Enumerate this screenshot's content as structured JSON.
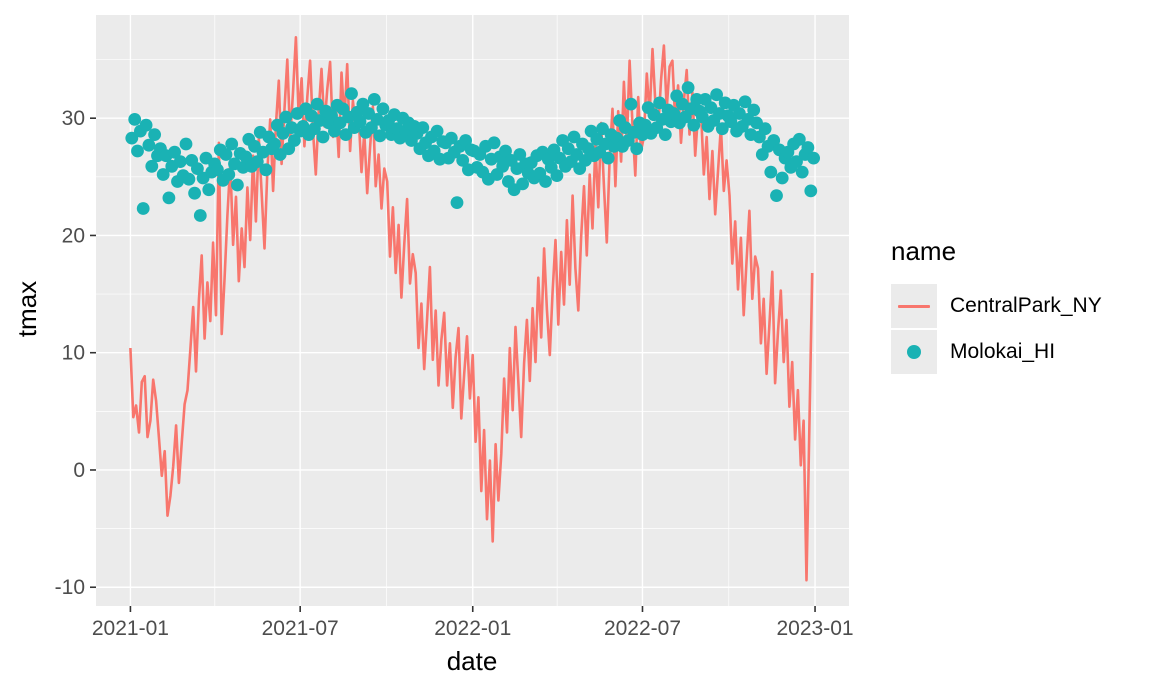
{
  "style": {
    "figure_bg": "#FFFFFF",
    "panel_bg": "#EBEBEB",
    "grid_color": "#FFFFFF",
    "tick_mark_color": "#333333",
    "tick_label_color": "#4D4D4D",
    "axis_title_color": "#000000",
    "legend_key_bg": "#EBEBEB",
    "line_color": "#F8766D",
    "point_color": "#1AB2B4"
  },
  "chart_data": {
    "type": "line+scatter",
    "title": "",
    "xlabel": "date",
    "ylabel": "tmax",
    "x_axis": {
      "unit": "days since 2021-01-01",
      "domain_days": [
        -36.7,
        766.2
      ],
      "ticks": [
        {
          "day": 0,
          "label": "2021-01"
        },
        {
          "day": 181,
          "label": "2021-07"
        },
        {
          "day": 365,
          "label": "2022-01"
        },
        {
          "day": 546,
          "label": "2022-07"
        },
        {
          "day": 730,
          "label": "2023-01"
        }
      ],
      "minor_days": [
        90,
        273,
        455,
        638
      ]
    },
    "y_axis": {
      "domain": [
        -11.6,
        38.8
      ],
      "ticks": [
        30,
        20,
        10,
        0,
        -10
      ],
      "minor": [
        35,
        25,
        15,
        5,
        -5
      ]
    },
    "legend": {
      "title": "name",
      "position": "right",
      "entries": [
        {
          "label": "CentralPark_NY",
          "glyph": "line",
          "color": "#F8766D"
        },
        {
          "label": "Molokai_HI",
          "glyph": "point",
          "color": "#1AB2B4"
        }
      ]
    },
    "series": [
      {
        "name": "CentralPark_NY",
        "type": "line",
        "color": "#F8766D",
        "stroke_width": 2.6,
        "x_start_day": 0,
        "x_step_days": 3.0417,
        "values": [
          10.4,
          4.5,
          5.5,
          3.2,
          7.5,
          8,
          2.8,
          4.2,
          7.7,
          5.9,
          2.8,
          -0.5,
          1.6,
          -3.9,
          -2.2,
          0.3,
          3.8,
          -1.1,
          2.4,
          5.6,
          6.8,
          10.2,
          13.9,
          8.4,
          14.5,
          18.3,
          11.2,
          16,
          12.7,
          19.4,
          13.2,
          27.9,
          11.6,
          16.4,
          21.7,
          26.2,
          19.2,
          23.3,
          16.1,
          20.6,
          17.3,
          24.1,
          19.6,
          26.8,
          21.2,
          28.3,
          23.7,
          18.9,
          25.4,
          29.9,
          23.8,
          29.4,
          33.2,
          26.1,
          30.8,
          35,
          28.3,
          32.2,
          36.9,
          30.1,
          33.4,
          27.6,
          31.8,
          34.9,
          28.9,
          25.2,
          30.6,
          34.2,
          29.3,
          32.5,
          34.8,
          28.4,
          31.2,
          26.7,
          33.9,
          29.8,
          34.6,
          27.2,
          31.5,
          29,
          30.2,
          25.4,
          28.8,
          23.6,
          27.4,
          31,
          24.2,
          26.9,
          22.3,
          25.7,
          24.6,
          18.2,
          22.4,
          16.8,
          20.9,
          14.7,
          19.3,
          23.1,
          15.9,
          18.4,
          16.8,
          10.4,
          14.2,
          8.6,
          12.9,
          17.3,
          9.4,
          13.6,
          7.2,
          11.1,
          13.4,
          7.2,
          10.8,
          5.3,
          9.6,
          12.1,
          4.4,
          8.2,
          11.4,
          6.1,
          9.8,
          2.4,
          6.2,
          -1.8,
          3.4,
          -4.2,
          0.8,
          -6.1,
          2.2,
          -2.6,
          1.4,
          7.8,
          3.2,
          10.4,
          5.1,
          12.2,
          7.4,
          2.8,
          9.1,
          12.8,
          7.6,
          13.8,
          9.2,
          16.4,
          11.3,
          18.9,
          13.7,
          9.8,
          15.2,
          19.6,
          12.4,
          18.6,
          14.1,
          21.3,
          15.8,
          23.4,
          17.2,
          13.6,
          19.8,
          24.2,
          18.3,
          25.2,
          20.6,
          27.8,
          22.4,
          29.6,
          24.1,
          19.4,
          26.7,
          30.8,
          24.2,
          30.6,
          26.3,
          33.1,
          27.8,
          34.9,
          29.4,
          25.1,
          31.8,
          27.2,
          28.4,
          33.8,
          30.2,
          35.9,
          31.4,
          29,
          33.2,
          36.2,
          30.8,
          34.4,
          34.9,
          29.6,
          32.8,
          27.9,
          31.4,
          34.1,
          28.6,
          32.2,
          26.8,
          30.4,
          30.6,
          25.2,
          28.4,
          23.1,
          27.2,
          21.8,
          25.6,
          29.3,
          23.8,
          26.4,
          23.4,
          17.6,
          21.2,
          15.4,
          19.8,
          13.2,
          17.9,
          22.1,
          14.6,
          18.2,
          17.2,
          10.8,
          14.6,
          8.2,
          12.4,
          16.9,
          7.4,
          11.8,
          15.3,
          9.2,
          12.8,
          5.4,
          9.2,
          2.6,
          6.8,
          0.4,
          4.2,
          -9.4,
          3.8,
          16.8
        ]
      },
      {
        "name": "Molokai_HI",
        "type": "scatter",
        "color": "#1AB2B4",
        "point_radius": 6.4,
        "x_start_day": 1.5,
        "x_step_days": 3.0417,
        "values": [
          28.3,
          29.9,
          27.2,
          28.9,
          22.3,
          29.4,
          27.7,
          25.9,
          28.6,
          26.8,
          27.4,
          25.2,
          26.8,
          23.2,
          25.9,
          27.1,
          24.6,
          26.3,
          25.1,
          27.8,
          24.8,
          26.4,
          23.6,
          25.7,
          21.7,
          24.9,
          26.6,
          23.9,
          25.4,
          26.1,
          25.6,
          27.3,
          24.7,
          26.9,
          25.2,
          27.8,
          26.1,
          24.3,
          27,
          25.8,
          26.7,
          28.2,
          25.9,
          27.6,
          26.3,
          28.8,
          27.1,
          25.6,
          28.4,
          27.4,
          27.8,
          29.4,
          26.9,
          28.7,
          30.1,
          27.4,
          29.2,
          28.1,
          30.4,
          28.9,
          29.3,
          30.8,
          28.6,
          30.2,
          29.1,
          31.2,
          29.8,
          28.4,
          30.6,
          29.6,
          30.2,
          28.9,
          31.1,
          29.6,
          30.8,
          28.6,
          30.1,
          32.1,
          29.2,
          30.5,
          29.7,
          31.2,
          28.8,
          30.4,
          29.2,
          31.6,
          29.9,
          28.5,
          30.8,
          29.4,
          29.8,
          28.6,
          30.3,
          29.1,
          28.3,
          30,
          28.9,
          29.6,
          28.1,
          29.3,
          28.7,
          27.4,
          29.2,
          27.9,
          26.8,
          28.4,
          27.2,
          28.9,
          26.5,
          28,
          27.9,
          26.6,
          28.3,
          27.1,
          22.8,
          27.6,
          26.4,
          28.1,
          25.6,
          27.3,
          27.2,
          25.8,
          26.9,
          25.4,
          27.6,
          24.8,
          26.5,
          27.9,
          25.2,
          26.7,
          25.9,
          27.2,
          24.6,
          26.4,
          23.9,
          25.7,
          26.9,
          24.4,
          26.1,
          25.3,
          26.2,
          24.9,
          26.8,
          25.3,
          27.1,
          24.6,
          26.5,
          25.8,
          27.3,
          25.1,
          26.6,
          28.1,
          25.9,
          27.4,
          26.3,
          28.4,
          26.9,
          25.7,
          27.8,
          26.4,
          27.4,
          28.9,
          26.8,
          28.2,
          27.1,
          29.1,
          27.8,
          26.6,
          28.6,
          27.6,
          28.3,
          29.8,
          27.6,
          29.2,
          28.1,
          31.2,
          28.8,
          27.4,
          29.6,
          28.6,
          29.4,
          30.9,
          28.7,
          30.3,
          29.2,
          31.3,
          29.9,
          28.6,
          30.7,
          29.7,
          30.4,
          31.9,
          29.6,
          31.2,
          30.1,
          32.6,
          30.8,
          29.4,
          31.6,
          30.6,
          30.1,
          31.6,
          29.3,
          30.9,
          29.8,
          32,
          30.4,
          29.1,
          31.3,
          30.2,
          29.7,
          31.1,
          28.9,
          30.4,
          29.3,
          31.4,
          29.9,
          28.6,
          30.7,
          29.6,
          28.4,
          26.9,
          29.1,
          27.6,
          25.4,
          28.1,
          23.4,
          27.3,
          24.9,
          26.6,
          27.1,
          25.8,
          27.8,
          26.3,
          28.2,
          25.4,
          26.9,
          27.5,
          23.8,
          26.6
        ]
      }
    ]
  }
}
